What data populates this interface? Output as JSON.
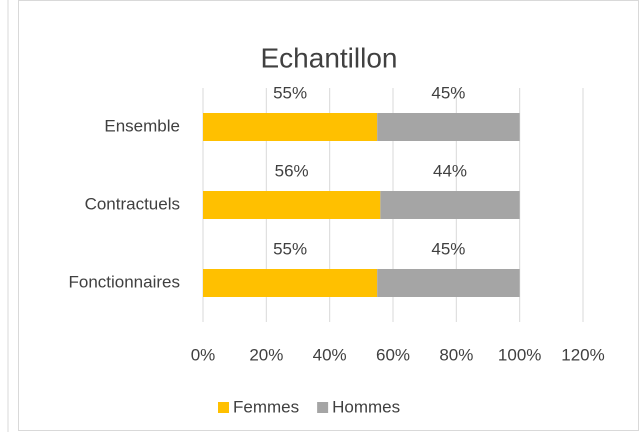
{
  "chart_data": {
    "type": "bar",
    "orientation": "horizontal",
    "stacked": true,
    "title": "Echantillon",
    "categories": [
      "Ensemble",
      "Contractuels",
      "Fonctionnaires"
    ],
    "series": [
      {
        "name": "Femmes",
        "color": "#ffc000",
        "values": [
          55,
          56,
          55
        ],
        "value_labels": [
          "55%",
          "56%",
          "55%"
        ]
      },
      {
        "name": "Hommes",
        "color": "#a5a5a5",
        "values": [
          45,
          44,
          45
        ],
        "value_labels": [
          "45%",
          "44%",
          "45%"
        ]
      }
    ],
    "xlim": [
      0,
      120
    ],
    "xticks": [
      {
        "value": 0,
        "label": "0%"
      },
      {
        "value": 20,
        "label": "20%"
      },
      {
        "value": 40,
        "label": "40%"
      },
      {
        "value": 60,
        "label": "60%"
      },
      {
        "value": 80,
        "label": "80%"
      },
      {
        "value": 100,
        "label": "100%"
      },
      {
        "value": 120,
        "label": "120%"
      }
    ],
    "grid": true,
    "legend": "bottom"
  }
}
